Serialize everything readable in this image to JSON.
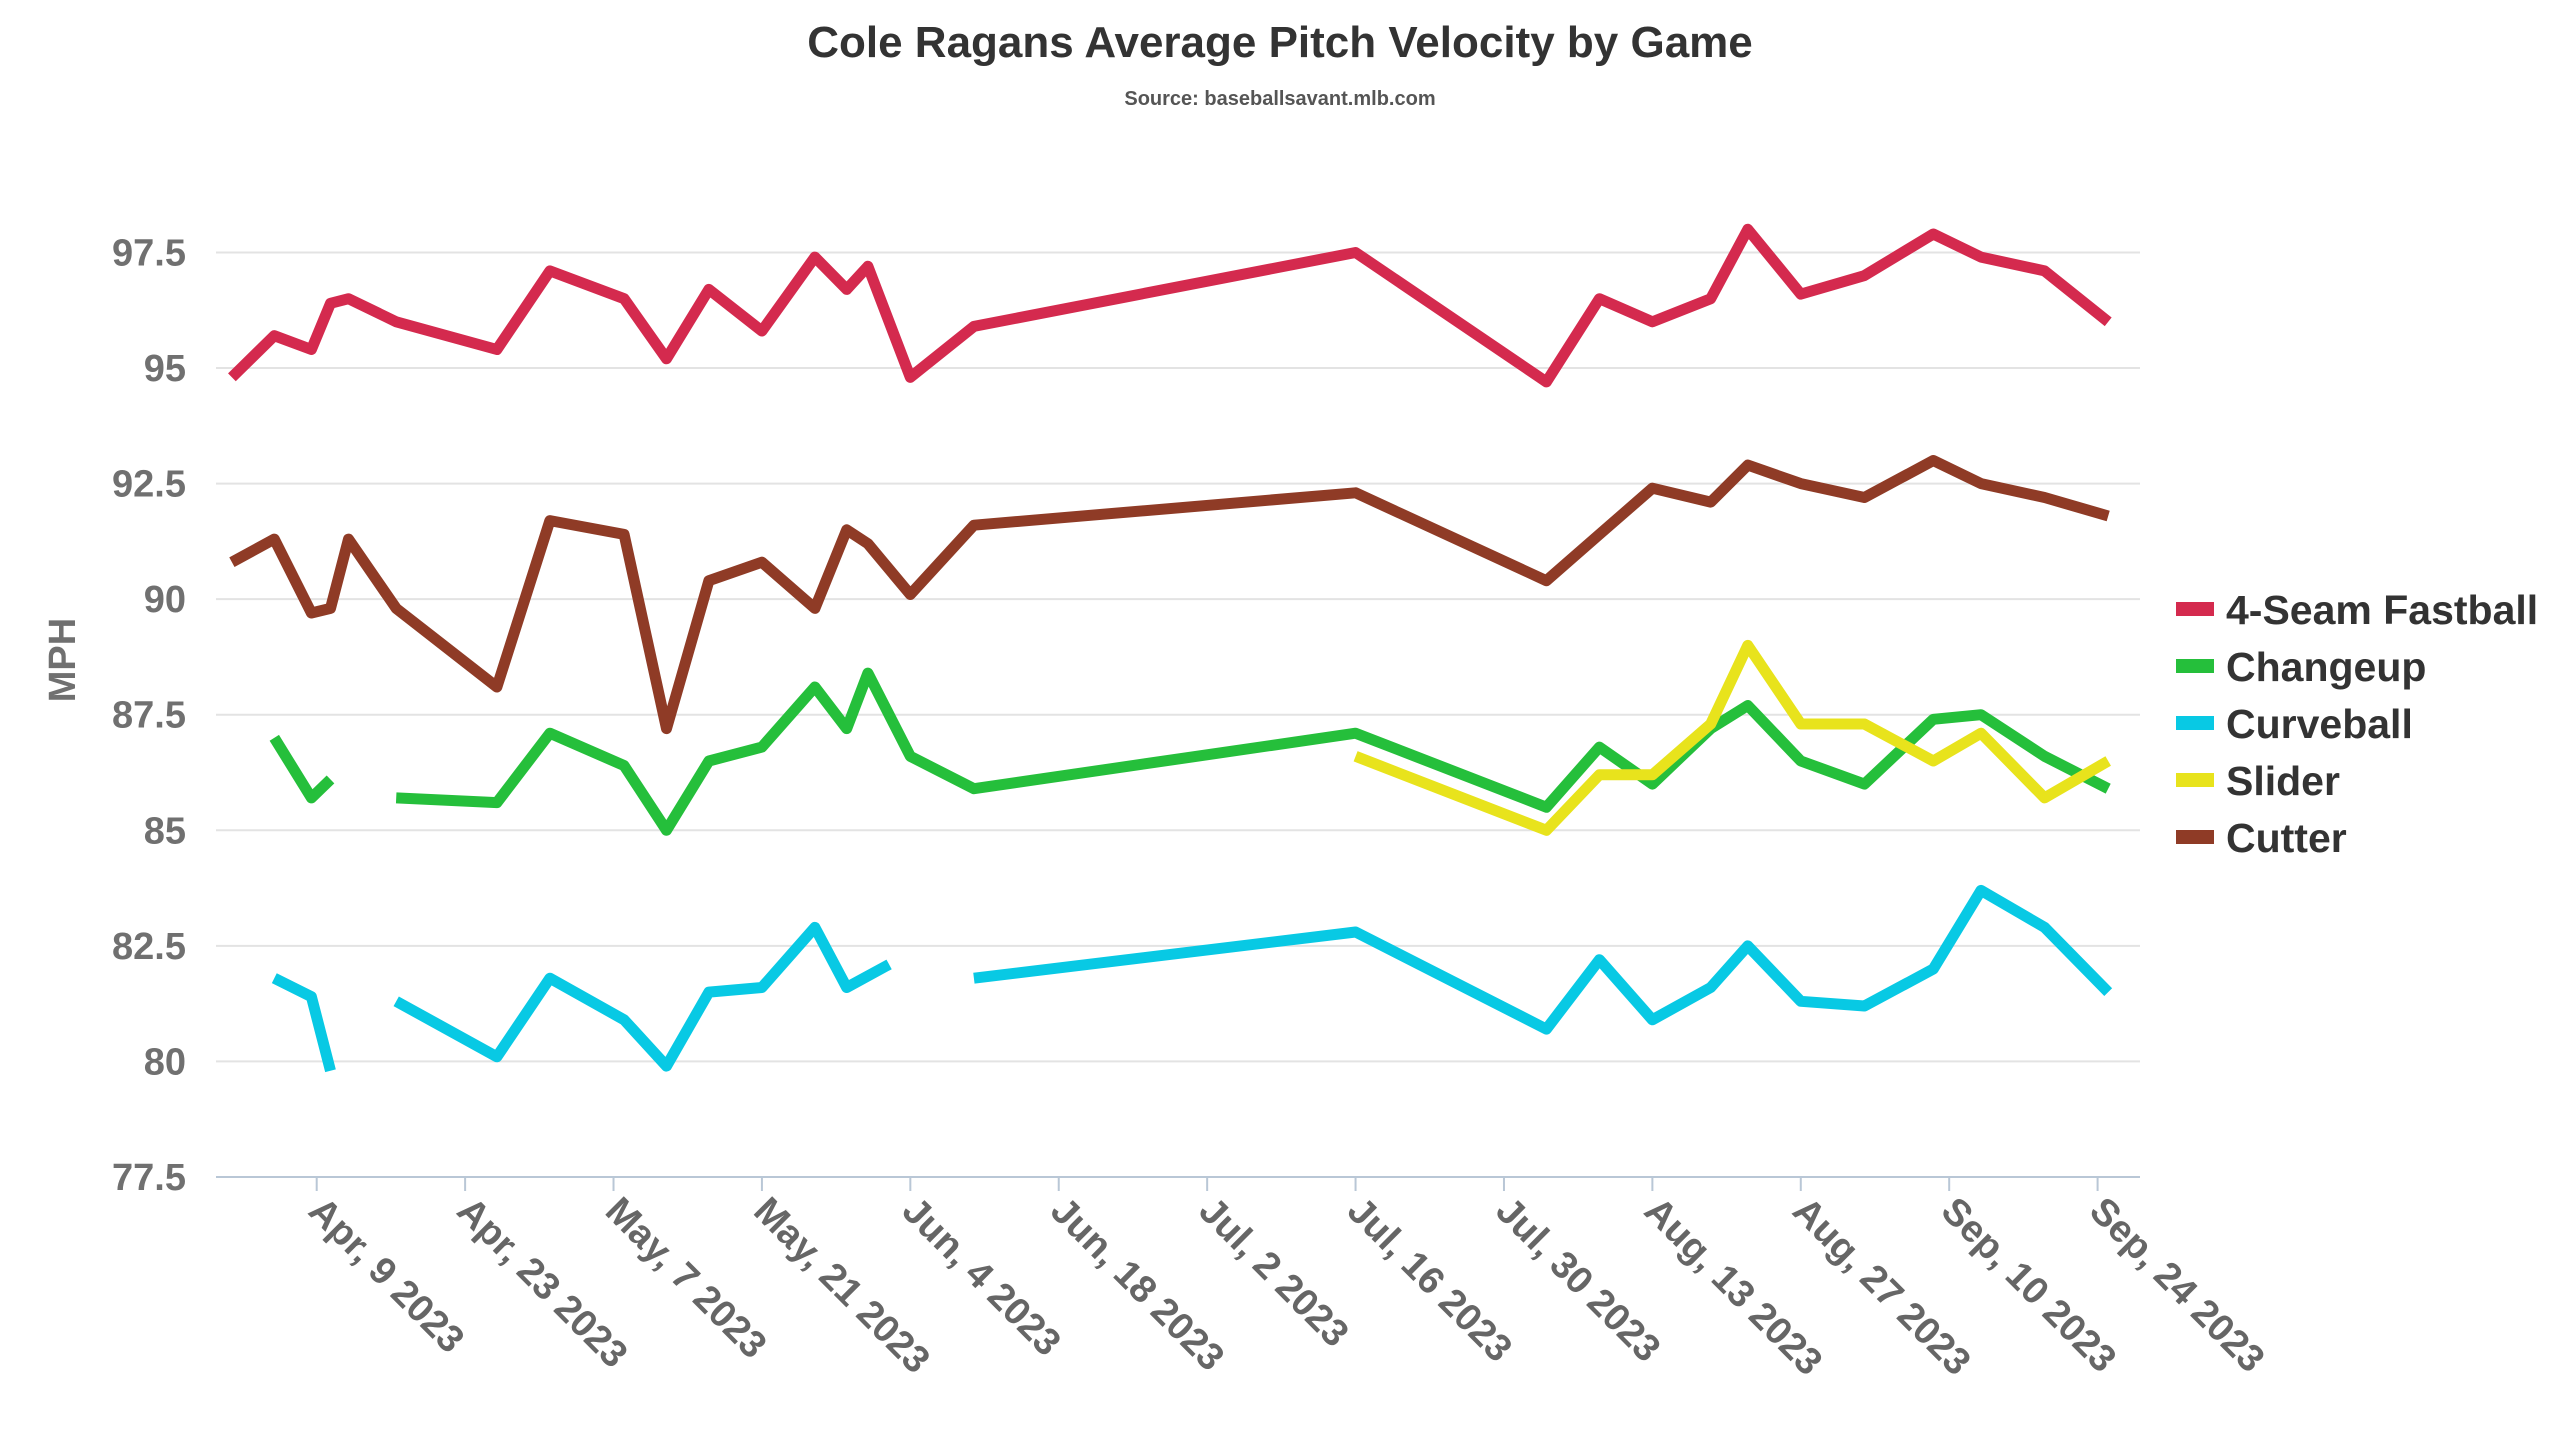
{
  "chart_data": {
    "type": "line",
    "title": "Cole Ragans Average Pitch Velocity by Game",
    "subtitle": "Source: baseballsavant.mlb.com",
    "ylabel": "MPH",
    "xlabel": "",
    "ylim": [
      77.5,
      99.5
    ],
    "yticks": [
      77.5,
      80,
      82.5,
      85,
      87.5,
      90,
      92.5,
      95,
      97.5
    ],
    "ytick_labels": [
      "77.5",
      "80",
      "82.5",
      "85",
      "87.5",
      "90",
      "92.5",
      "95",
      "97.5"
    ],
    "x_unit": "days since 2023-04-01",
    "xlim": [
      -1.5,
      180
    ],
    "xticks": [
      8,
      22,
      36,
      50,
      64,
      78,
      92,
      106,
      120,
      134,
      148,
      162,
      176
    ],
    "xtick_labels": [
      "Apr, 9 2023",
      "Apr, 23 2023",
      "May, 7 2023",
      "May, 21 2023",
      "Jun, 4 2023",
      "Jun, 18 2023",
      "Jul, 2 2023",
      "Jul, 16 2023",
      "Jul, 30 2023",
      "Aug, 13 2023",
      "Aug, 27 2023",
      "Sep, 10 2023",
      "Sep, 24 2023"
    ],
    "grid": true,
    "legend_position": "right",
    "series": [
      {
        "name": "4-Seam Fastball",
        "color": "#d42a4e",
        "x": [
          0,
          4,
          7.5,
          9.3,
          11,
          15.5,
          25,
          30,
          37,
          41,
          45,
          50,
          55,
          58,
          60,
          64,
          70,
          106,
          124,
          129,
          134,
          139.5,
          143,
          148,
          154,
          160.5,
          165,
          171,
          177
        ],
        "y": [
          94.8,
          95.7,
          95.4,
          96.4,
          96.5,
          96.0,
          95.4,
          97.1,
          96.5,
          95.2,
          96.7,
          95.8,
          97.4,
          96.7,
          97.2,
          94.8,
          95.9,
          97.5,
          94.7,
          96.5,
          96.0,
          96.5,
          98.0,
          96.6,
          97.0,
          97.9,
          97.4,
          97.1,
          96.0
        ]
      },
      {
        "name": "Changeup",
        "color": "#25bf3b",
        "x": [
          4,
          7.5,
          9.3,
          null,
          15.5,
          25,
          30,
          37,
          41,
          45,
          50,
          55,
          58,
          60,
          64,
          70,
          106,
          124,
          129,
          134,
          139.5,
          143,
          148,
          154,
          160.5,
          165,
          171,
          177
        ],
        "y": [
          87.0,
          85.7,
          86.1,
          null,
          85.7,
          85.6,
          87.1,
          86.4,
          85.0,
          86.5,
          86.8,
          88.1,
          87.2,
          88.4,
          86.6,
          85.9,
          87.1,
          85.5,
          86.8,
          86.0,
          87.2,
          87.7,
          86.5,
          86.0,
          87.4,
          87.5,
          86.6,
          85.9
        ]
      },
      {
        "name": "Curveball",
        "color": "#08c9e4",
        "x": [
          4,
          7.5,
          9.3,
          null,
          15.5,
          25,
          30,
          37,
          41,
          45,
          50,
          55,
          58,
          62,
          null,
          70,
          106,
          124,
          129,
          134,
          139.5,
          143,
          148,
          154,
          160.5,
          165,
          171,
          177
        ],
        "y": [
          81.8,
          81.4,
          79.8,
          null,
          81.3,
          80.1,
          81.8,
          80.9,
          79.9,
          81.5,
          81.6,
          82.9,
          81.6,
          82.1,
          null,
          81.8,
          82.8,
          80.7,
          82.2,
          80.9,
          81.6,
          82.5,
          81.3,
          81.2,
          82.0,
          83.7,
          82.9,
          81.5
        ]
      },
      {
        "name": "Slider",
        "color": "#e8e31c",
        "x": [
          106,
          124,
          129,
          134,
          139.5,
          143,
          148,
          154,
          160.5,
          165,
          171,
          177
        ],
        "y": [
          86.6,
          85.0,
          86.2,
          86.2,
          87.3,
          89.0,
          87.3,
          87.3,
          86.5,
          87.1,
          85.7,
          86.5
        ]
      },
      {
        "name": "Cutter",
        "color": "#8f3b26",
        "x": [
          0,
          4,
          7.5,
          9.3,
          11,
          15.5,
          25,
          30,
          37,
          41,
          45,
          50,
          55,
          58,
          60,
          64,
          70,
          106,
          124,
          129,
          134,
          139.5,
          143,
          148,
          154,
          160.5,
          165,
          171,
          177
        ],
        "y": [
          90.8,
          91.3,
          89.7,
          89.8,
          91.3,
          89.8,
          88.1,
          91.7,
          91.4,
          87.2,
          90.4,
          90.8,
          89.8,
          91.5,
          91.2,
          90.1,
          91.6,
          92.3,
          90.4,
          91.4,
          92.4,
          92.1,
          92.9,
          92.5,
          92.2,
          93.0,
          92.5,
          92.2,
          91.8
        ]
      }
    ]
  }
}
